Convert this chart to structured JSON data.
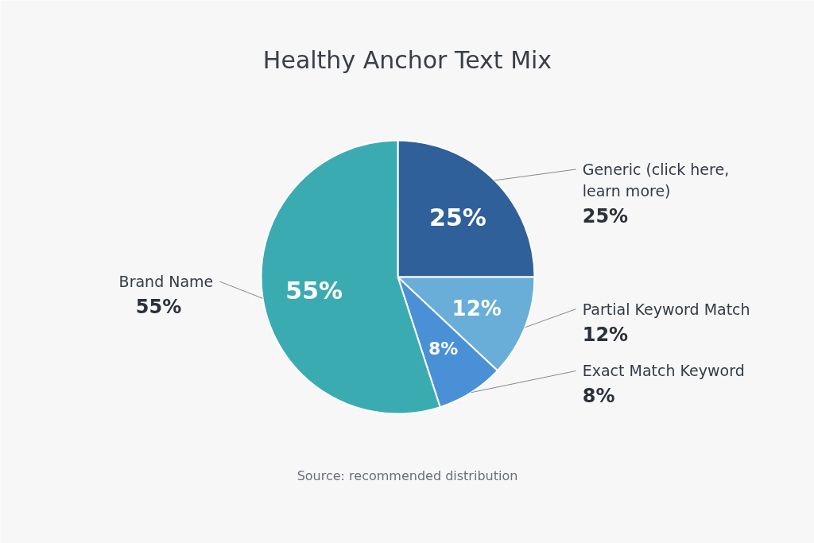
{
  "chart_data": {
    "type": "pie",
    "title": "Healthy Anchor Text Mix",
    "categories": [
      "Generic (click here, learn more)",
      "Partial Keyword Match",
      "Exact Match Keyword",
      "Brand Name"
    ],
    "values": [
      25,
      12,
      8,
      55
    ],
    "colors": [
      "#30609a",
      "#68aed8",
      "#4a90d6",
      "#3aacb1"
    ],
    "value_labels": [
      "25%",
      "12%",
      "8%",
      "55%"
    ],
    "annotations": [
      "Source: recommended distribution"
    ]
  }
}
